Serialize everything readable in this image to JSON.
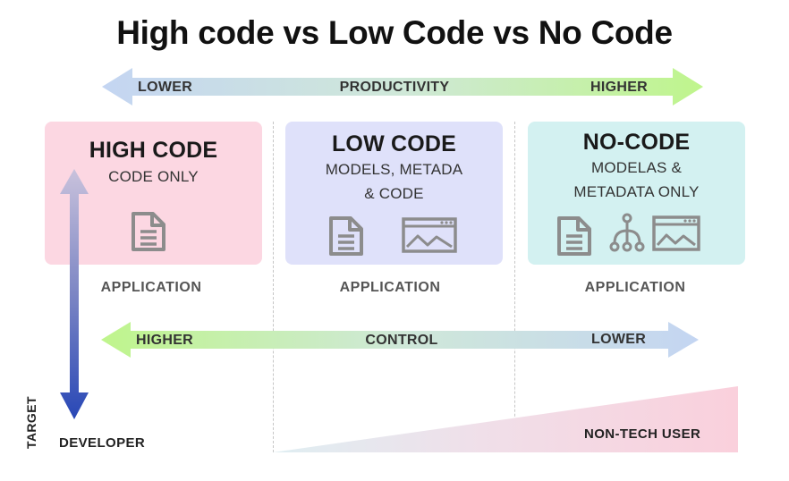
{
  "title": "High code vs Low Code vs No Code",
  "productivity_arrow": {
    "left": "LOWER",
    "center": "PRODUCTIVITY",
    "right": "HIGHER"
  },
  "control_arrow": {
    "left": "HIGHER",
    "center": "CONTROL",
    "right": "LOWER"
  },
  "cards": [
    {
      "title": "HIGH CODE",
      "subtitle_lines": [
        "CODE ONLY"
      ],
      "icons": [
        "document-icon"
      ],
      "app_label": "APPLICATION",
      "color": "#fcd7e2"
    },
    {
      "title": "LOW CODE",
      "subtitle_lines": [
        "MODELS, METADA",
        "& CODE"
      ],
      "icons": [
        "document-icon",
        "image-icon"
      ],
      "app_label": "APPLICATION",
      "color": "#dfe1fa"
    },
    {
      "title": "NO-CODE",
      "subtitle_lines": [
        "MODELAS &",
        "METADATA ONLY"
      ],
      "icons": [
        "document-icon",
        "hierarchy-icon",
        "image-icon"
      ],
      "app_label": "APPLICATION",
      "color": "#d3f1f1"
    }
  ],
  "target": {
    "label": "TARGET",
    "start": "DEVELOPER",
    "end": "NON-TECH USER"
  },
  "colors": {
    "arrow_blue": "#c4d5f2",
    "arrow_green": "#bff58c",
    "target_arrow_dark": "#2847b6",
    "target_arrow_light": "#c9c2dc",
    "ramp_pink": "#fad0dc",
    "icon_gray": "#8c8c8c"
  }
}
